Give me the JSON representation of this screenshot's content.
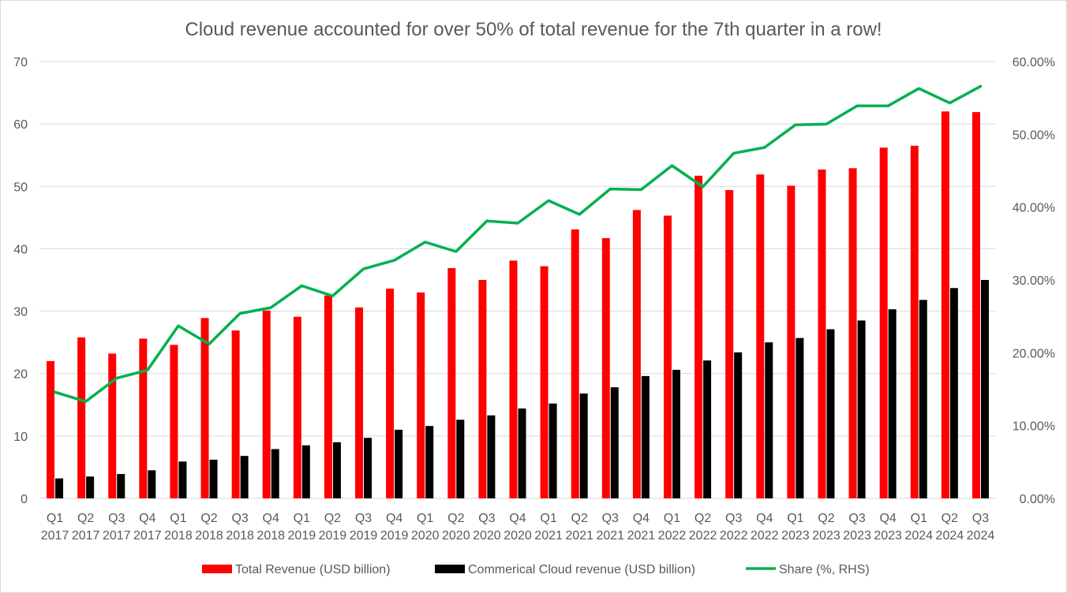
{
  "chart_data": {
    "type": "bar",
    "title": "Cloud revenue accounted for over 50% of total revenue for the 7th quarter in a row!",
    "categories": [
      [
        "Q1",
        "2017"
      ],
      [
        "Q2",
        "2017"
      ],
      [
        "Q3",
        "2017"
      ],
      [
        "Q4",
        "2017"
      ],
      [
        "Q1",
        "2018"
      ],
      [
        "Q2",
        "2018"
      ],
      [
        "Q3",
        "2018"
      ],
      [
        "Q4",
        "2018"
      ],
      [
        "Q1",
        "2019"
      ],
      [
        "Q2",
        "2019"
      ],
      [
        "Q3",
        "2019"
      ],
      [
        "Q4",
        "2019"
      ],
      [
        "Q1",
        "2020"
      ],
      [
        "Q2",
        "2020"
      ],
      [
        "Q3",
        "2020"
      ],
      [
        "Q4",
        "2020"
      ],
      [
        "Q1",
        "2021"
      ],
      [
        "Q2",
        "2021"
      ],
      [
        "Q3",
        "2021"
      ],
      [
        "Q4",
        "2021"
      ],
      [
        "Q1",
        "2022"
      ],
      [
        "Q2",
        "2022"
      ],
      [
        "Q3",
        "2022"
      ],
      [
        "Q4",
        "2022"
      ],
      [
        "Q1",
        "2023"
      ],
      [
        "Q2",
        "2023"
      ],
      [
        "Q3",
        "2023"
      ],
      [
        "Q4",
        "2023"
      ],
      [
        "Q1",
        "2024"
      ],
      [
        "Q2",
        "2024"
      ],
      [
        "Q3",
        "2024"
      ]
    ],
    "ylim_left": [
      0,
      70
    ],
    "yticks_left": [
      "0",
      "10",
      "20",
      "30",
      "40",
      "50",
      "60",
      "70"
    ],
    "ylim_right": [
      0,
      0.6
    ],
    "yticks_right": [
      "0.00%",
      "10.00%",
      "20.00%",
      "30.00%",
      "40.00%",
      "50.00%",
      "60.00%"
    ],
    "grid": true,
    "legend_position": "bottom",
    "series": [
      {
        "name": "Total Revenue (USD billion)",
        "kind": "bar",
        "axis": "left",
        "color": "#ff0000",
        "values": [
          22.0,
          25.8,
          23.2,
          25.6,
          24.6,
          28.9,
          26.9,
          30.1,
          29.1,
          32.5,
          30.6,
          33.6,
          33.0,
          36.9,
          35.0,
          38.1,
          37.2,
          43.1,
          41.7,
          46.2,
          45.3,
          51.7,
          49.4,
          51.9,
          50.1,
          52.7,
          52.9,
          56.2,
          56.5,
          62.0,
          61.9
        ]
      },
      {
        "name": "Commerical Cloud revenue (USD billion)",
        "kind": "bar",
        "axis": "left",
        "color": "#000000",
        "values": [
          3.2,
          3.5,
          3.9,
          4.5,
          5.9,
          6.2,
          6.8,
          7.9,
          8.5,
          9.0,
          9.7,
          11.0,
          11.6,
          12.6,
          13.3,
          14.4,
          15.2,
          16.8,
          17.8,
          19.6,
          20.6,
          22.1,
          23.4,
          25.0,
          25.7,
          27.1,
          28.5,
          30.3,
          31.8,
          33.7,
          35.0
        ]
      },
      {
        "name": "Share (%, RHS)",
        "kind": "line",
        "axis": "right",
        "color": "#00b050",
        "values": [
          0.146,
          0.133,
          0.165,
          0.176,
          0.237,
          0.212,
          0.254,
          0.262,
          0.292,
          0.278,
          0.315,
          0.327,
          0.352,
          0.339,
          0.381,
          0.378,
          0.409,
          0.39,
          0.425,
          0.424,
          0.457,
          0.428,
          0.474,
          0.482,
          0.513,
          0.514,
          0.539,
          0.539,
          0.563,
          0.543,
          0.566
        ]
      }
    ]
  }
}
